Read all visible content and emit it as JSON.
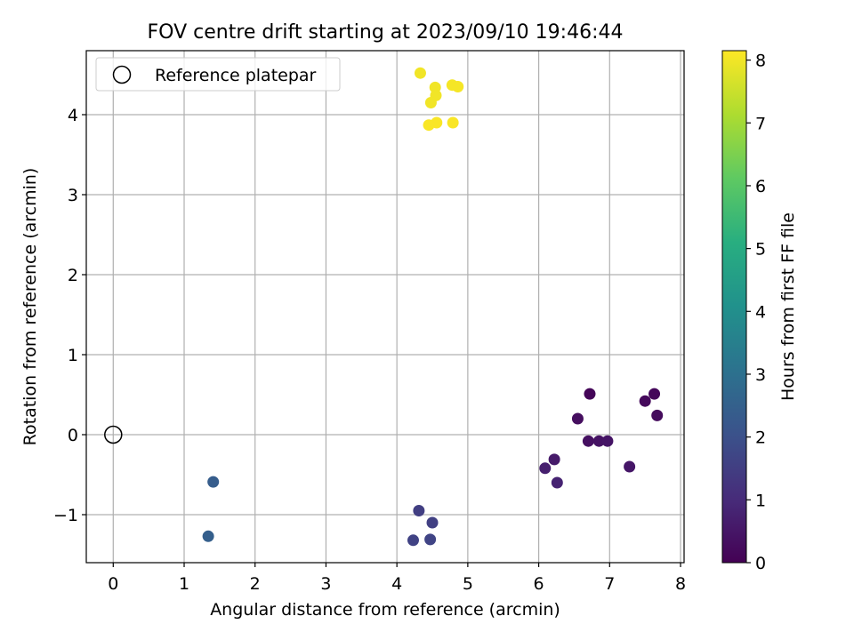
{
  "chart_data": {
    "type": "scatter",
    "title": "FOV centre drift starting at 2023/09/10 19:46:44",
    "xlabel": "Angular distance from reference (arcmin)",
    "ylabel": "Rotation from reference (arcmin)",
    "xlim": [
      -0.38,
      8.05
    ],
    "ylim": [
      -1.6,
      4.8
    ],
    "x_ticks": [
      0,
      1,
      2,
      3,
      4,
      5,
      6,
      7,
      8
    ],
    "y_ticks": [
      -1,
      0,
      1,
      2,
      3,
      4
    ],
    "x_tick_labels": [
      "0",
      "1",
      "2",
      "3",
      "4",
      "5",
      "6",
      "7",
      "8"
    ],
    "y_tick_labels": [
      "−1",
      "0",
      "1",
      "2",
      "3",
      "4"
    ],
    "grid": true,
    "legend": {
      "position": "top-left",
      "entries": [
        "Reference platepar"
      ]
    },
    "reference_point": {
      "x": 0,
      "y": 0
    },
    "colorbar": {
      "label": "Hours from first FF file",
      "colormap": "viridis",
      "range": [
        0,
        8.15
      ],
      "ticks": [
        0,
        1,
        2,
        3,
        4,
        5,
        6,
        7,
        8
      ],
      "tick_labels": [
        "0",
        "1",
        "2",
        "3",
        "4",
        "5",
        "6",
        "7",
        "8"
      ]
    },
    "points": [
      {
        "x": 6.72,
        "y": 0.51,
        "c": 0.1
      },
      {
        "x": 7.63,
        "y": 0.51,
        "c": 0.15
      },
      {
        "x": 7.5,
        "y": 0.42,
        "c": 0.2
      },
      {
        "x": 7.67,
        "y": 0.24,
        "c": 0.25
      },
      {
        "x": 6.55,
        "y": 0.2,
        "c": 0.3
      },
      {
        "x": 6.7,
        "y": -0.08,
        "c": 0.35
      },
      {
        "x": 6.85,
        "y": -0.08,
        "c": 0.4
      },
      {
        "x": 6.97,
        "y": -0.08,
        "c": 0.45
      },
      {
        "x": 7.28,
        "y": -0.4,
        "c": 0.5
      },
      {
        "x": 6.22,
        "y": -0.31,
        "c": 0.6
      },
      {
        "x": 6.09,
        "y": -0.42,
        "c": 0.7
      },
      {
        "x": 6.26,
        "y": -0.6,
        "c": 0.8
      },
      {
        "x": 4.31,
        "y": -0.95,
        "c": 1.5
      },
      {
        "x": 4.5,
        "y": -1.1,
        "c": 1.55
      },
      {
        "x": 4.23,
        "y": -1.32,
        "c": 1.6
      },
      {
        "x": 4.47,
        "y": -1.31,
        "c": 1.65
      },
      {
        "x": 1.41,
        "y": -0.59,
        "c": 2.4
      },
      {
        "x": 1.34,
        "y": -1.27,
        "c": 2.45
      },
      {
        "x": 4.33,
        "y": 4.52,
        "c": 8.0
      },
      {
        "x": 4.54,
        "y": 4.34,
        "c": 8.0
      },
      {
        "x": 4.55,
        "y": 4.24,
        "c": 8.0
      },
      {
        "x": 4.48,
        "y": 4.15,
        "c": 8.0
      },
      {
        "x": 4.78,
        "y": 4.37,
        "c": 8.05
      },
      {
        "x": 4.86,
        "y": 4.35,
        "c": 8.05
      },
      {
        "x": 4.56,
        "y": 3.9,
        "c": 8.1
      },
      {
        "x": 4.45,
        "y": 3.87,
        "c": 8.1
      },
      {
        "x": 4.79,
        "y": 3.9,
        "c": 8.1
      }
    ]
  }
}
